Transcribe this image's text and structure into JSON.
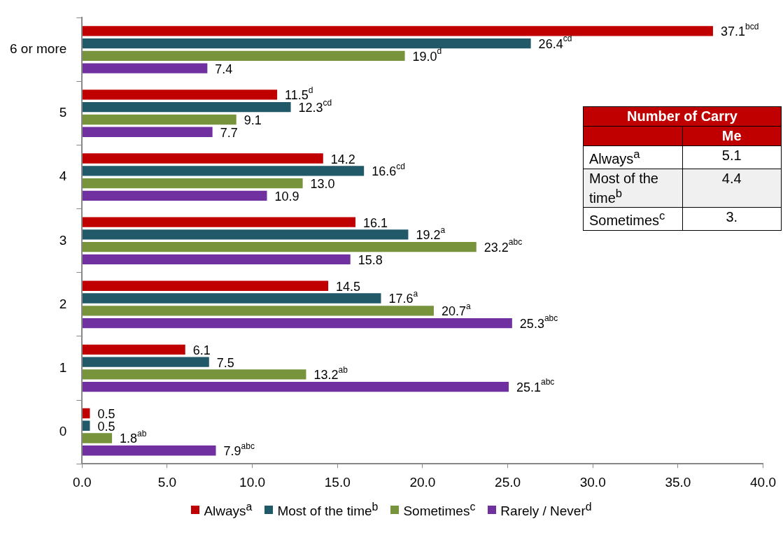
{
  "chart_data": {
    "type": "bar",
    "orientation": "horizontal",
    "categories": [
      "6 or more",
      "5",
      "4",
      "3",
      "2",
      "1",
      "0"
    ],
    "series": [
      {
        "name": "Always$^{a}$",
        "color": "#c00000",
        "values": [
          37.1,
          11.5,
          14.2,
          16.1,
          14.5,
          6.1,
          0.5
        ],
        "value_labels": [
          "37.1$^{bcd}$",
          "11.5$^{d}$",
          "14.2",
          "16.1",
          "14.5",
          "6.1",
          "0.5"
        ]
      },
      {
        "name": "Most of the time$^{b}$",
        "color": "#215968",
        "values": [
          26.4,
          12.3,
          16.6,
          19.2,
          17.6,
          7.5,
          0.5
        ],
        "value_labels": [
          "26.4$^{cd}$",
          "12.3$^{cd}$",
          "16.6$^{cd}$",
          "19.2$^{a}$",
          "17.6$^{a}$",
          "7.5",
          "0.5"
        ]
      },
      {
        "name": "Sometimes$^{c}$",
        "color": "#77933c",
        "values": [
          19.0,
          9.1,
          13.0,
          23.2,
          20.7,
          13.2,
          1.8
        ],
        "value_labels": [
          "19.0$^{d}$",
          "9.1",
          "13.0",
          "23.2$^{abc}$",
          "20.7$^{a}$",
          "13.2$^{ab}$",
          "1.8$^{ab}$"
        ]
      },
      {
        "name": "Rarely / Never$^{d}$",
        "color": "#7030a0",
        "values": [
          7.4,
          7.7,
          10.9,
          15.8,
          25.3,
          25.1,
          7.9
        ],
        "value_labels": [
          "7.4",
          "7.7",
          "10.9",
          "15.8",
          "25.3$^{abc}$",
          "25.1$^{abc}$",
          "7.9$^{abc}$"
        ]
      }
    ],
    "xlim": [
      0,
      40
    ],
    "xticks": [
      {
        "value": 0,
        "label": "0.0"
      },
      {
        "value": 5,
        "label": "5.0"
      },
      {
        "value": 10,
        "label": "10.0"
      },
      {
        "value": 15,
        "label": "15.0"
      },
      {
        "value": 20,
        "label": "20.0"
      },
      {
        "value": 25,
        "label": "25.0"
      },
      {
        "value": 30,
        "label": "30.0"
      },
      {
        "value": 35,
        "label": "35.0"
      },
      {
        "value": 40,
        "label": "40.0"
      }
    ],
    "grid": false,
    "legend": "bottom",
    "annotations": [
      "Number of Carry",
      "Me",
      "Always$^{a}$",
      "5.1",
      "Most of the time$^{b}$",
      "4.4",
      "Sometimes$^{c}$",
      "3."
    ]
  }
}
